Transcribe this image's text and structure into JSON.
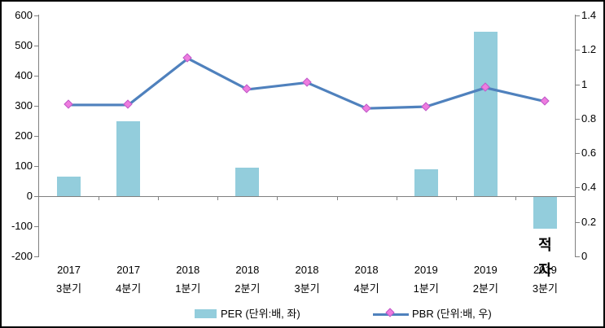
{
  "chart_data": {
    "type": "bar",
    "subtype": "combo-bar-line",
    "title": "",
    "categories": [
      [
        "2017",
        "3분기"
      ],
      [
        "2017",
        "4분기"
      ],
      [
        "2018",
        "1분기"
      ],
      [
        "2018",
        "2분기"
      ],
      [
        "2018",
        "3분기"
      ],
      [
        "2018",
        "4분기"
      ],
      [
        "2019",
        "1분기"
      ],
      [
        "2019",
        "2분기"
      ],
      [
        "2019",
        "3분기"
      ]
    ],
    "series": [
      {
        "name": "PER (단위:배, 좌)",
        "type": "bar",
        "axis": "left",
        "color": "#93CDDC",
        "values": [
          65,
          250,
          null,
          95,
          null,
          null,
          90,
          545,
          -105
        ]
      },
      {
        "name": "PBR (단위:배, 우)",
        "type": "line",
        "axis": "right",
        "color": "#4F81BD",
        "marker": "diamond",
        "marker_color": "#EE7CDF",
        "marker_border_color": "#BE5AC8",
        "values": [
          0.88,
          0.88,
          1.15,
          0.97,
          1.01,
          0.86,
          0.87,
          0.98,
          0.9
        ]
      }
    ],
    "left_axis": {
      "min": -200,
      "max": 600,
      "tick_step": 100,
      "ticks": [
        "600",
        "500",
        "400",
        "300",
        "200",
        "100",
        "0",
        "-100",
        "-200"
      ]
    },
    "right_axis": {
      "min": 0,
      "max": 1.4,
      "tick_step": 0.2,
      "ticks": [
        "1.4",
        "1.2",
        "1",
        "0.8",
        "0.6",
        "0.4",
        "0.2",
        "0"
      ]
    },
    "grid": "off",
    "legend_position": "bottom",
    "annotation": {
      "text": "적자",
      "lines": [
        "적",
        "자"
      ],
      "at_category": "2019 3분기"
    },
    "axis_color": "#808080"
  }
}
